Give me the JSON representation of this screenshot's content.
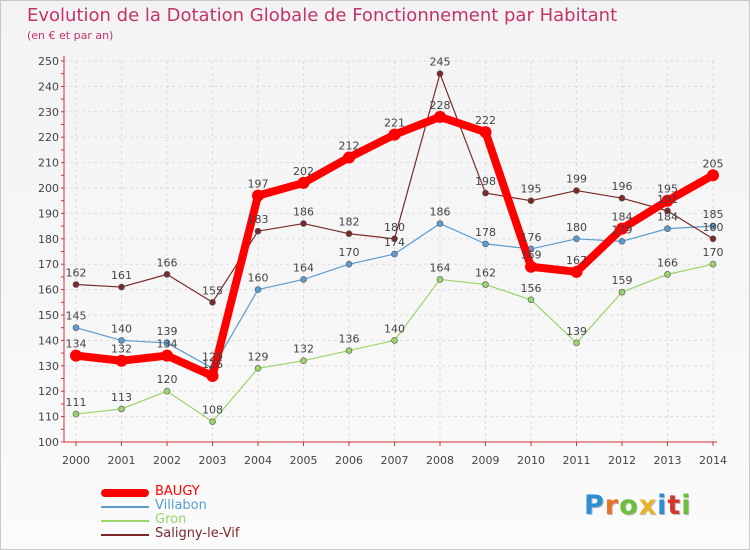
{
  "title": "Evolution de la Dotation Globale de Fonctionnement par Habitant",
  "subtitle": "(en € et par an)",
  "brand": {
    "text": "Proxiti",
    "letter_colors": [
      "#2c8fd6",
      "#e8742a",
      "#6bbf3a",
      "#e8b52a",
      "#2c8fd6",
      "#d6372c",
      "#6bbf3a"
    ]
  },
  "chart_data": {
    "type": "line",
    "x": [
      "2000",
      "2001",
      "2002",
      "2003",
      "2004",
      "2005",
      "2006",
      "2007",
      "2008",
      "2009",
      "2010",
      "2011",
      "2012",
      "2013",
      "2014"
    ],
    "ylim": [
      100,
      250
    ],
    "yticks": [
      100,
      110,
      120,
      130,
      140,
      150,
      160,
      170,
      180,
      190,
      200,
      210,
      220,
      230,
      240,
      250
    ],
    "grid": true,
    "legend_position": "bottom-left",
    "series": [
      {
        "name": "BAUGY",
        "color": "#ff0000",
        "emphasis": true,
        "values": [
          134,
          132,
          134,
          126,
          197,
          202,
          212,
          221,
          228,
          222,
          169,
          167,
          184,
          195,
          205
        ],
        "value_labels": [
          "134",
          "132",
          "134",
          "126",
          "197",
          "202",
          "212",
          "221",
          "228",
          "222",
          "169",
          "167",
          "184",
          "195",
          "205"
        ]
      },
      {
        "name": "Villabon",
        "color": "#5b9bd0",
        "values": [
          145,
          140,
          139,
          129,
          160,
          164,
          170,
          174,
          186,
          178,
          176,
          180,
          179,
          184,
          185
        ],
        "value_labels": [
          "145",
          "140",
          "139",
          "129",
          "160",
          "164",
          "170",
          "174",
          "186",
          "178",
          "176",
          "180",
          "179",
          "184",
          "185"
        ]
      },
      {
        "name": "Gron",
        "color": "#9bd46a",
        "values": [
          111,
          113,
          120,
          108,
          129,
          132,
          136,
          140,
          164,
          162,
          156,
          139,
          159,
          166,
          170
        ],
        "value_labels": [
          "111",
          "113",
          "120",
          "108",
          "129",
          "132",
          "136",
          "140",
          "164",
          "162",
          "156",
          "139",
          "159",
          "166",
          "170"
        ]
      },
      {
        "name": "Saligny-le-Vif",
        "color": "#7a2a2a",
        "values": [
          162,
          161,
          166,
          155,
          183,
          186,
          182,
          180,
          245,
          198,
          195,
          199,
          196,
          191,
          180
        ],
        "value_labels": [
          "162",
          "161",
          "166",
          "155",
          "183",
          "186",
          "182",
          "180",
          "245",
          "198",
          "195",
          "199",
          "196",
          "191",
          "180"
        ]
      }
    ]
  }
}
